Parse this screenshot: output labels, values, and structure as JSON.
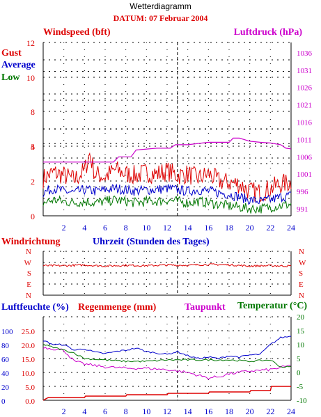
{
  "header": {
    "title": "Wetterdiagramm",
    "datum": "DATUM: 07 Februar 2004"
  },
  "colors": {
    "red": "#dd0000",
    "blue": "#0000cc",
    "green": "#007700",
    "magenta": "#cc00cc",
    "grid": "#000000"
  },
  "x_ticks": [
    "2",
    "4",
    "6",
    "8",
    "10",
    "12",
    "14",
    "16",
    "18",
    "20",
    "22",
    "24"
  ],
  "chart_data": [
    {
      "type": "line",
      "labels": {
        "left_title": "Windspeed (bft)",
        "right_title": "Luftdruck (hPa)",
        "legend_gust": "Gust",
        "legend_average": "Average",
        "legend_low": "Low"
      },
      "left_ticks": [
        "0",
        "2",
        "4",
        "5",
        "8",
        "10",
        "12"
      ],
      "right_ticks": [
        "991",
        "996",
        "1001",
        "1006",
        "1011",
        "1016",
        "1021",
        "1026",
        "1031",
        "1036"
      ],
      "ylim_left": [
        0,
        12
      ],
      "ylim_right": [
        989,
        1039
      ],
      "xlim": [
        0,
        24
      ],
      "series": [
        {
          "name": "Gust",
          "color": "red",
          "x": [
            0,
            1,
            2,
            3,
            4,
            4.5,
            5,
            6,
            7,
            8,
            9,
            10,
            11,
            12,
            13,
            14,
            15,
            16,
            17,
            18,
            19,
            20,
            21,
            22,
            23,
            24
          ],
          "y": [
            2.6,
            3.0,
            2.8,
            2.5,
            3.1,
            4.3,
            2.9,
            2.7,
            3.2,
            2.9,
            2.8,
            3.0,
            2.9,
            3.1,
            2.8,
            2.9,
            2.6,
            2.9,
            2.4,
            2.3,
            2.2,
            1.7,
            1.6,
            1.9,
            2.2,
            2.3
          ]
        },
        {
          "name": "Average",
          "color": "blue",
          "x": [
            0,
            1,
            2,
            3,
            4,
            5,
            6,
            7,
            8,
            9,
            10,
            11,
            12,
            13,
            14,
            15,
            16,
            17,
            18,
            19,
            20,
            21,
            22,
            23,
            24
          ],
          "y": [
            1.6,
            1.9,
            1.7,
            1.6,
            1.8,
            1.7,
            1.8,
            1.9,
            1.8,
            1.7,
            1.8,
            1.8,
            1.9,
            1.8,
            1.7,
            1.8,
            1.7,
            1.6,
            1.5,
            1.3,
            1.1,
            1.0,
            1.1,
            1.3,
            1.4
          ]
        },
        {
          "name": "Low",
          "color": "green",
          "x": [
            0,
            1,
            2,
            3,
            4,
            5,
            6,
            7,
            8,
            9,
            10,
            11,
            12,
            13,
            14,
            15,
            16,
            17,
            18,
            19,
            20,
            21,
            22,
            23,
            24
          ],
          "y": [
            0.9,
            1.1,
            1.0,
            0.9,
            1.0,
            0.9,
            1.0,
            1.1,
            1.0,
            0.9,
            1.0,
            1.0,
            1.1,
            1.0,
            0.9,
            1.0,
            0.9,
            0.8,
            0.7,
            0.6,
            0.5,
            0.5,
            0.6,
            0.7,
            0.8
          ]
        },
        {
          "name": "Luftdruck",
          "color": "magenta",
          "axis": "right",
          "x": [
            0,
            6.8,
            7.3,
            8.5,
            9,
            11,
            12.3,
            12.8,
            14,
            16,
            17,
            18,
            18.4,
            19,
            20,
            21,
            22,
            23,
            23.5,
            24
          ],
          "y": [
            1004.5,
            1004.5,
            1006,
            1006,
            1008,
            1008.5,
            1008.5,
            1009.5,
            1009.5,
            1010.2,
            1010.2,
            1010.2,
            1011.4,
            1011.4,
            1010.5,
            1010.2,
            1010,
            1009.5,
            1008.5,
            1008.3
          ]
        }
      ]
    },
    {
      "type": "line",
      "labels": {
        "left_title": "Windrichtung",
        "center_title": "Uhrzeit (Stunden des Tages)"
      },
      "direction_ticks": [
        "N",
        "W",
        "S",
        "E",
        "N"
      ],
      "series": [
        {
          "name": "Windrichtung",
          "color": "red",
          "x": [
            0,
            2,
            4,
            6,
            8,
            10,
            12,
            14,
            16,
            18,
            20,
            22,
            24
          ],
          "y": [
            265,
            265,
            270,
            262,
            268,
            265,
            270,
            268,
            275,
            272,
            262,
            265,
            262
          ]
        }
      ]
    },
    {
      "type": "line",
      "labels": {
        "humidity_title": "Luftfeuchte (%)",
        "rain_title": "Regenmenge (mm)",
        "dew_title": "Taupunkt",
        "temp_title": "Temperatur (°C)"
      },
      "left_ticks_humidity": [
        "0",
        "20",
        "40",
        "60",
        "80",
        "100"
      ],
      "left_ticks_rain": [
        "0.0",
        "5.0",
        "10.0",
        "15.0",
        "20.0",
        "25.0"
      ],
      "right_ticks": [
        "-10",
        "-5",
        "0",
        "5",
        "10",
        "15",
        "20"
      ],
      "ylim_temp": [
        -10,
        20
      ],
      "series": [
        {
          "name": "Luftfeuchte",
          "color": "blue",
          "unit": "%",
          "x": [
            0,
            1,
            2,
            3,
            4,
            5,
            6,
            7,
            8,
            9,
            10,
            11,
            12,
            13,
            14,
            15,
            16,
            17,
            18,
            19,
            20,
            21,
            22,
            23,
            24
          ],
          "y": [
            86,
            80,
            80,
            72,
            74,
            69,
            67,
            70,
            72,
            75,
            70,
            68,
            66,
            70,
            64,
            60,
            62,
            60,
            64,
            62,
            65,
            66,
            80,
            90,
            92
          ]
        },
        {
          "name": "Regenmenge",
          "color": "red",
          "unit": "mm",
          "x": [
            0,
            0.5,
            1,
            4,
            4.1,
            8,
            8.1,
            12,
            12.1,
            16,
            16.1,
            20,
            20.1,
            22,
            22.1,
            24
          ],
          "y": [
            0,
            1,
            1,
            1,
            1.5,
            1.5,
            2,
            2,
            2.5,
            2.5,
            3,
            3,
            3.5,
            3.5,
            5,
            5
          ]
        },
        {
          "name": "Taupunkt",
          "color": "magenta",
          "unit": "°C",
          "x": [
            0,
            2,
            3,
            4,
            6,
            8,
            10,
            12,
            14,
            15,
            16,
            17,
            18,
            20,
            22,
            24
          ],
          "y": [
            9,
            8,
            4,
            3,
            2,
            1.5,
            1.5,
            1,
            0,
            -1,
            -2,
            -1.5,
            -0.5,
            0.5,
            1,
            2.5
          ]
        },
        {
          "name": "Temperatur",
          "color": "green",
          "unit": "°C",
          "x": [
            0,
            2,
            3,
            4,
            6,
            8,
            10,
            12,
            14,
            16,
            18,
            20,
            22,
            23,
            24
          ],
          "y": [
            10,
            8,
            7,
            5,
            4.5,
            4,
            4,
            4.5,
            4.5,
            4.5,
            4.5,
            4,
            4.5,
            2,
            2
          ]
        }
      ]
    }
  ]
}
